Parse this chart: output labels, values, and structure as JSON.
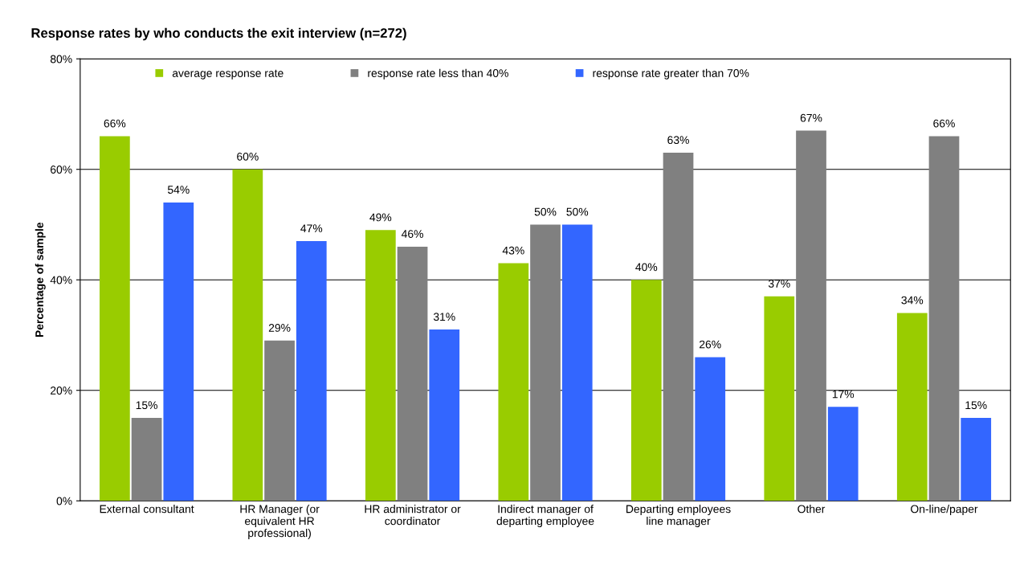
{
  "chart_data": {
    "type": "bar",
    "title": "Response rates by who conducts the exit interview (n=272)",
    "ylabel": "Percentage of sample",
    "categories": [
      "External consultant",
      "HR Manager (or\nequivalent HR\nprofessional)",
      "HR administrator or\ncoordinator",
      "Indirect manager of\ndeparting employee",
      "Departing employees\nline manager",
      "Other",
      "On-line/paper"
    ],
    "series": [
      {
        "name": "average response rate",
        "color": "#99cc00",
        "values": [
          66,
          60,
          49,
          43,
          40,
          37,
          34
        ],
        "value_labels": [
          "66%",
          "60%",
          "49%",
          "43%",
          "40%",
          "37%",
          "34%"
        ]
      },
      {
        "name": "response rate less than 40%",
        "color": "#808080",
        "values": [
          15,
          29,
          46,
          50,
          63,
          67,
          66
        ],
        "value_labels": [
          "15%",
          "29%",
          "46%",
          "50%",
          "63%",
          "67%",
          "66%"
        ]
      },
      {
        "name": "response rate greater than 70%",
        "color": "#3366ff",
        "values": [
          54,
          47,
          31,
          50,
          26,
          17,
          15
        ],
        "value_labels": [
          "54%",
          "47%",
          "31%",
          "50%",
          "26%",
          "17%",
          "15%"
        ]
      }
    ],
    "ylim": [
      0,
      80
    ],
    "yticks": [
      {
        "value": 0,
        "label": "0%"
      },
      {
        "value": 20,
        "label": "20%"
      },
      {
        "value": 40,
        "label": "40%"
      },
      {
        "value": 60,
        "label": "60%"
      },
      {
        "value": 80,
        "label": "80%"
      }
    ],
    "grid": "y",
    "legend": "top left"
  }
}
